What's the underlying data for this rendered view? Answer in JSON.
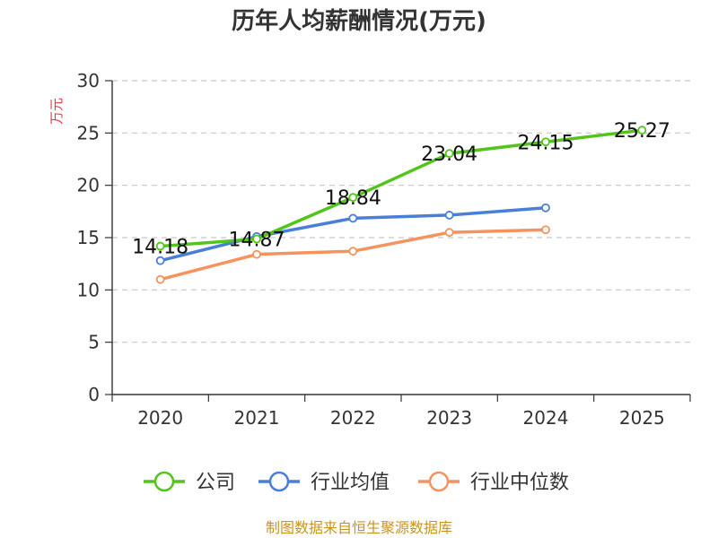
{
  "chart_data": {
    "type": "line",
    "title": "历年人均薪酬情况(万元)",
    "ylabel": "万元",
    "xlabel": "",
    "categories": [
      "2020",
      "2021",
      "2022",
      "2023",
      "2024",
      "2025"
    ],
    "ylim": [
      0,
      30
    ],
    "yticks": [
      0,
      5,
      10,
      15,
      20,
      25,
      30
    ],
    "grid": true,
    "legend_position": "bottom",
    "series": [
      {
        "name": "公司",
        "color": "#52c41a",
        "values": [
          14.18,
          14.87,
          18.84,
          23.04,
          24.15,
          25.27
        ],
        "labels": [
          "14.18",
          "14.87",
          "18.84",
          "23.04",
          "24.15",
          "25.27"
        ]
      },
      {
        "name": "行业均值",
        "color": "#4a7fd8",
        "values": [
          12.8,
          15.1,
          16.85,
          17.15,
          17.85,
          null
        ]
      },
      {
        "name": "行业中位数",
        "color": "#f5925d",
        "values": [
          11.0,
          13.4,
          13.7,
          15.5,
          15.75,
          null
        ]
      }
    ]
  },
  "source": "制图数据来自恒生聚源数据库"
}
